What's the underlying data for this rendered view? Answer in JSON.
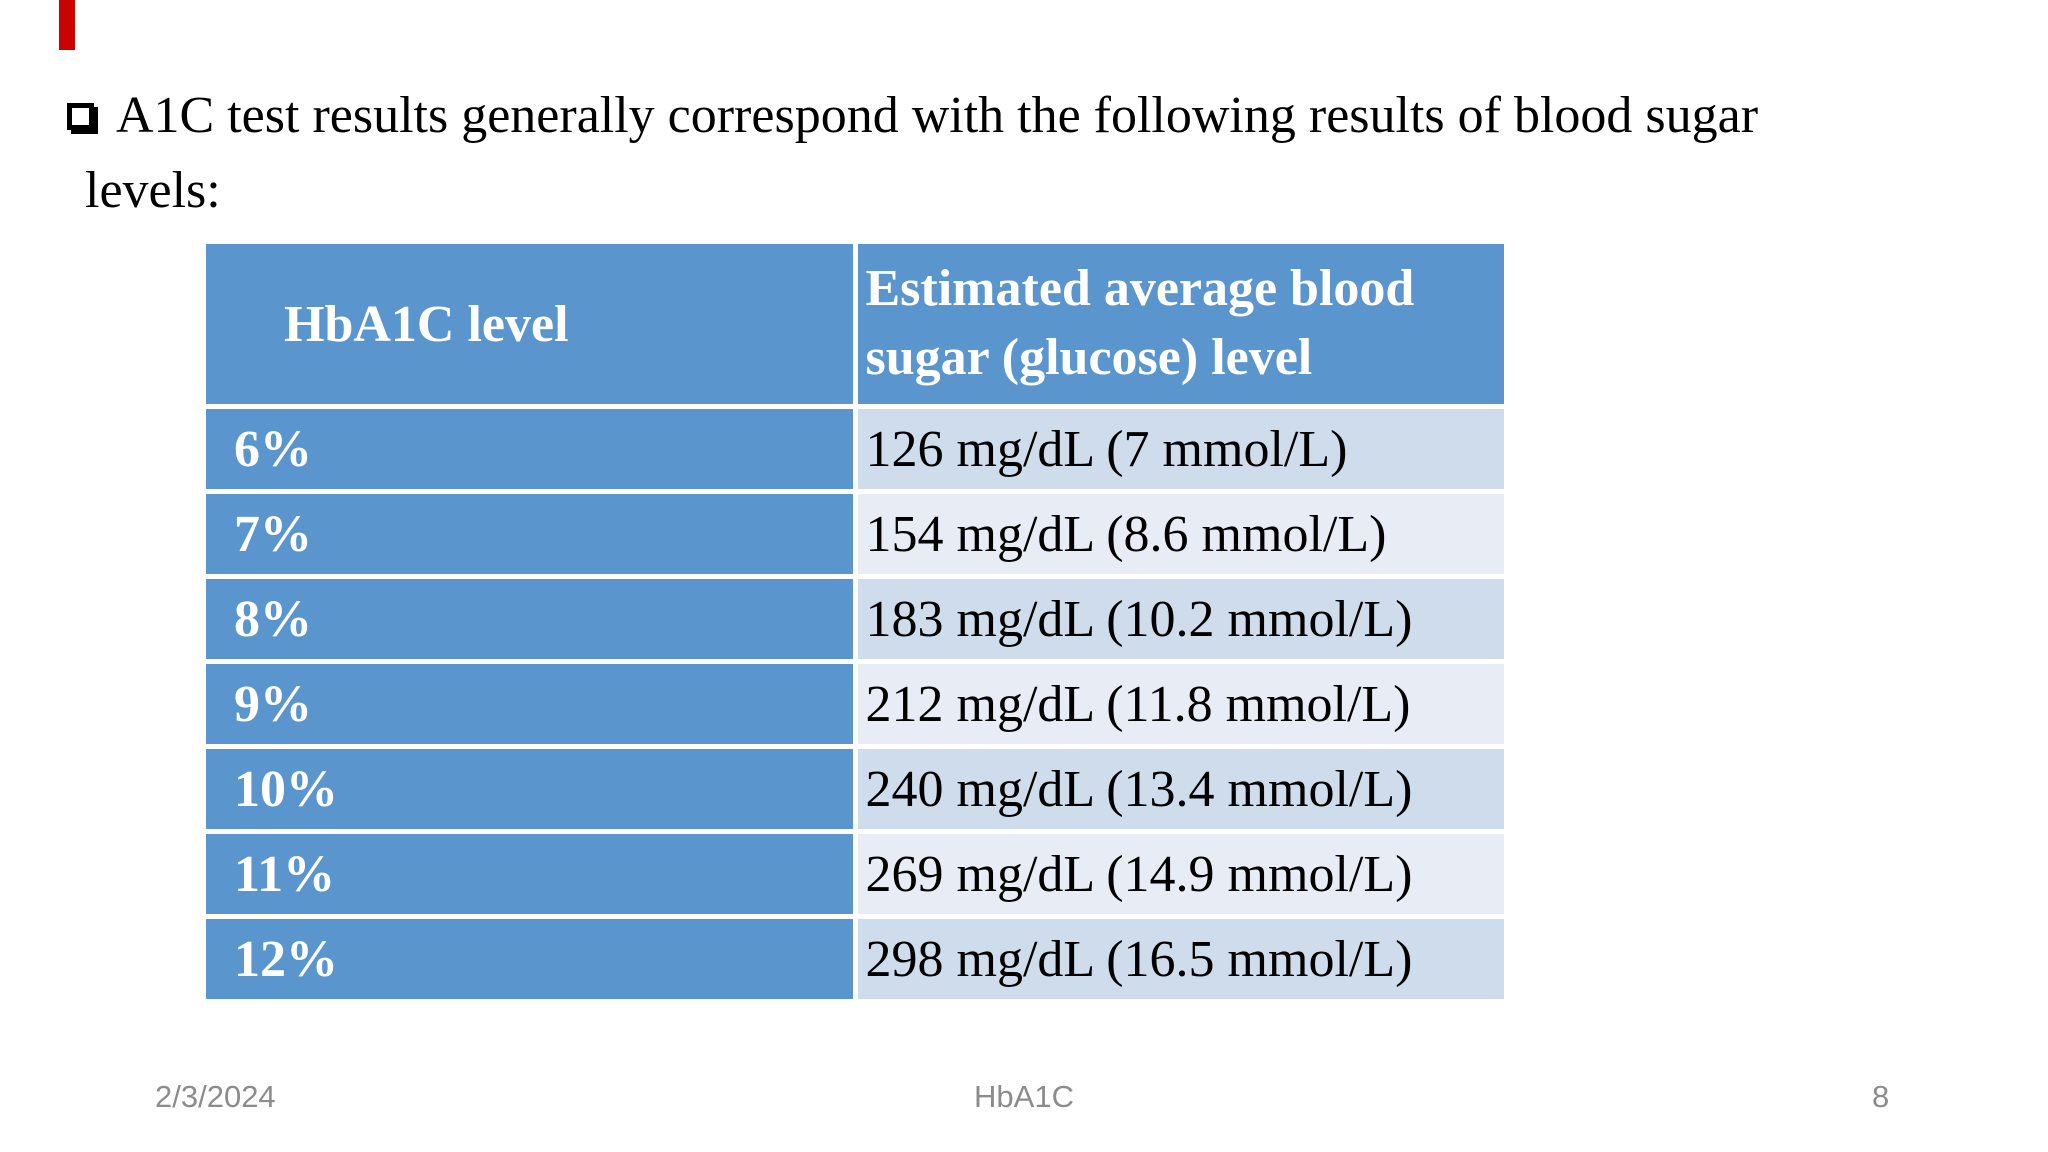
{
  "slide_title": {
    "bullet_icon": "hollow-square-checkbox",
    "lines": [
      "A1C test results generally correspond with the following results of blood sugar",
      "levels:"
    ]
  },
  "table": {
    "column_headers": {
      "level": "HbA1C level",
      "glucose": "Estimated average blood sugar (glucose) level"
    },
    "rows": [
      {
        "level": "6%",
        "glucose": "126 mg/dL (7 mmol/L)"
      },
      {
        "level": "7%",
        "glucose": "154 mg/dL (8.6 mmol/L)"
      },
      {
        "level": "8%",
        "glucose": "183 mg/dL (10.2 mmol/L)"
      },
      {
        "level": "9%",
        "glucose": "212 mg/dL (11.8 mmol/L)"
      },
      {
        "level": "10%",
        "glucose": "240 mg/dL (13.4 mmol/L)"
      },
      {
        "level": "11%",
        "glucose": "269 mg/dL (14.9 mmol/L)"
      },
      {
        "level": "12%",
        "glucose": "298 mg/dL (16.5 mmol/L)"
      }
    ]
  },
  "footer": {
    "date": "2/3/2024",
    "slide_label": "HbA1C",
    "page_number": "8"
  },
  "colors": {
    "blue": "#5a96cd",
    "bandDark": "#cfdceb",
    "bandLight": "#e8edf5",
    "red": "#cb0000",
    "gray": "#8c8c8c"
  }
}
